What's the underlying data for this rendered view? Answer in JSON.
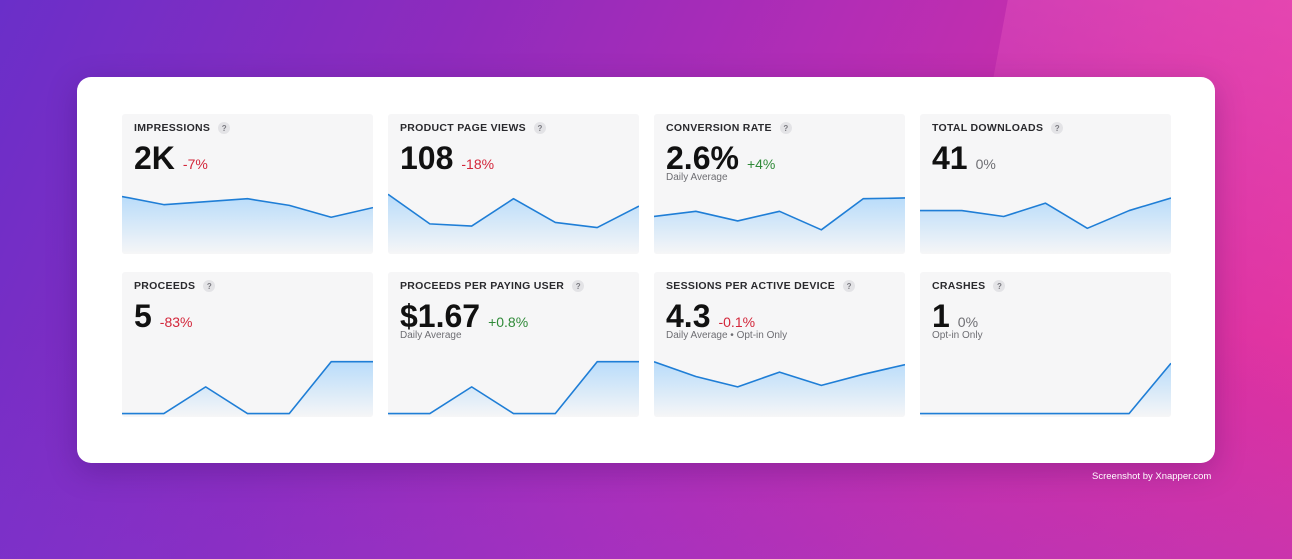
{
  "cards": [
    {
      "label": "IMPRESSIONS",
      "help": "?",
      "value": "2K",
      "change": "-7%",
      "trend": "negative",
      "subtitle": "",
      "series": [
        75,
        64,
        68,
        72,
        63,
        47,
        60
      ]
    },
    {
      "label": "PRODUCT PAGE VIEWS",
      "help": "?",
      "value": "108",
      "change": "-18%",
      "trend": "negative",
      "subtitle": "",
      "series": [
        78,
        38,
        35,
        72,
        40,
        33,
        62
      ]
    },
    {
      "label": "CONVERSION RATE",
      "help": "?",
      "value": "2.6%",
      "change": "+4%",
      "trend": "positive",
      "subtitle": "Daily Average",
      "series": [
        48,
        55,
        42,
        55,
        30,
        72,
        73
      ]
    },
    {
      "label": "TOTAL DOWNLOADS",
      "help": "?",
      "value": "41",
      "change": "0%",
      "trend": "neutral",
      "subtitle": "",
      "series": [
        56,
        56,
        48,
        66,
        32,
        56,
        73
      ]
    },
    {
      "label": "PROCEEDS",
      "help": "?",
      "value": "5",
      "change": "-83%",
      "trend": "negative",
      "subtitle": "",
      "series": [
        2,
        2,
        38,
        2,
        2,
        72,
        72
      ]
    },
    {
      "label": "PROCEEDS PER PAYING USER",
      "help": "?",
      "value": "$1.67",
      "change": "+0.8%",
      "trend": "positive",
      "subtitle": "Daily Average",
      "series": [
        2,
        2,
        38,
        2,
        2,
        72,
        72
      ]
    },
    {
      "label": "SESSIONS PER ACTIVE DEVICE",
      "help": "?",
      "value": "4.3",
      "change": "-0.1%",
      "trend": "negative",
      "subtitle": "Daily Average • Opt-in Only",
      "series": [
        72,
        52,
        38,
        58,
        40,
        55,
        68
      ]
    },
    {
      "label": "CRASHES",
      "help": "?",
      "value": "1",
      "change": "0%",
      "trend": "neutral",
      "subtitle": "Opt-in Only",
      "series": [
        2,
        2,
        2,
        2,
        2,
        2,
        70
      ]
    }
  ],
  "watermark": "Screenshot by Xnapper.com",
  "colors": {
    "line": "#1f7ed6",
    "fill_top": "#b9dcfa",
    "negative": "#d3263a",
    "positive": "#2f8a38",
    "neutral": "#6e6e73"
  }
}
